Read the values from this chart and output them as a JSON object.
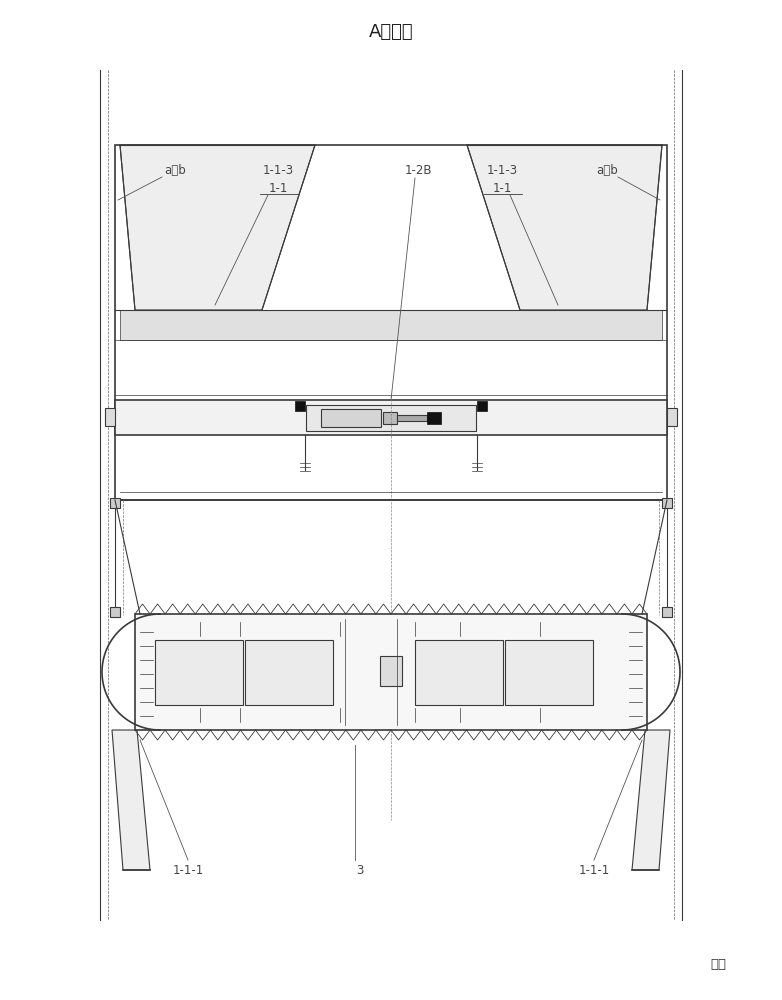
{
  "title": "A向旋转",
  "bg_color": "#ffffff",
  "line_color": "#3a3a3a",
  "label_color": "#444444",
  "labels": {
    "ab_left": "a、b",
    "ab_right": "a、b",
    "113_left": "1-1-3",
    "113_right": "1-1-3",
    "11_left": "1-1",
    "11_right": "1-1",
    "12b": "1-2B",
    "111_left": "1-1-1",
    "111_right": "1-1-1",
    "3": "3",
    "water": "水面"
  }
}
